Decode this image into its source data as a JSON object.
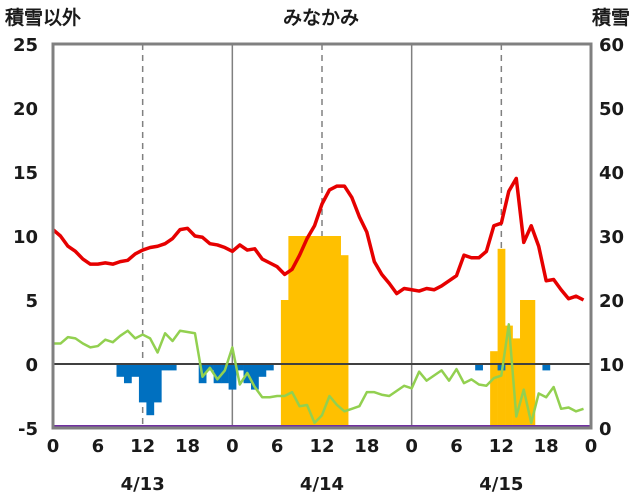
{
  "chart_data": {
    "type": "bar",
    "title": "みなかみ",
    "left_axis_label": "積雪以外",
    "right_axis_label": "積雪",
    "left_ylim": [
      -5,
      25
    ],
    "left_yticks": [
      "-5",
      "0",
      "5",
      "10",
      "15",
      "20",
      "25"
    ],
    "right_ylim": [
      0,
      60
    ],
    "right_yticks": [
      "0",
      "10",
      "20",
      "30",
      "40",
      "50",
      "60"
    ],
    "x_range_hours": [
      0,
      72
    ],
    "x_tick_labels": [
      "0",
      "6",
      "12",
      "18",
      "0",
      "6",
      "12",
      "18",
      "0",
      "6",
      "12",
      "18",
      "0"
    ],
    "dates": [
      "4/13",
      "4/14",
      "4/15"
    ],
    "grid": "vertical lines at day boundaries, dashed lines at noon",
    "colors": {
      "red_line": "#e60000",
      "green_line": "#92d050",
      "orange_bars": "#ffc000",
      "blue_bars": "#0070c0",
      "purple_line": "#7030a0",
      "frame": "#808080",
      "zero_line": "#404040"
    },
    "red_line_values": [
      10.5,
      10.0,
      9.2,
      8.8,
      8.2,
      7.8,
      7.8,
      7.9,
      7.8,
      8.0,
      8.1,
      8.6,
      8.9,
      9.1,
      9.2,
      9.4,
      9.8,
      10.5,
      10.6,
      10.0,
      9.9,
      9.4,
      9.3,
      9.1,
      8.8,
      9.3,
      8.9,
      9.0,
      8.2,
      7.9,
      7.6,
      7.0,
      7.4,
      8.5,
      9.8,
      10.8,
      12.5,
      13.6,
      13.9,
      13.9,
      13.0,
      11.5,
      10.3,
      8.0,
      7.0,
      6.3,
      5.5,
      5.9,
      5.8,
      5.7,
      5.9,
      5.8,
      6.1,
      6.5,
      6.9,
      8.5,
      8.3,
      8.3,
      8.8,
      10.8,
      11.0,
      13.5,
      14.5,
      9.5,
      10.8,
      9.2,
      6.5,
      6.6,
      5.8,
      5.1,
      5.3,
      5.0
    ],
    "green_line_values": [
      1.6,
      1.6,
      2.1,
      2.0,
      1.6,
      1.3,
      1.4,
      1.9,
      1.7,
      2.2,
      2.6,
      2.0,
      2.3,
      2.0,
      0.9,
      2.4,
      1.8,
      2.6,
      2.5,
      2.4,
      -1.0,
      -0.3,
      -1.2,
      -0.5,
      1.3,
      -1.6,
      -0.7,
      -1.8,
      -2.6,
      -2.6,
      -2.5,
      -2.5,
      -2.2,
      -3.3,
      -3.2,
      -4.6,
      -4.0,
      -2.5,
      -3.2,
      -3.7,
      -3.5,
      -3.3,
      -2.2,
      -2.2,
      -2.4,
      -2.5,
      -2.1,
      -1.7,
      -1.9,
      -0.6,
      -1.3,
      -0.9,
      -0.5,
      -1.3,
      -0.4,
      -1.5,
      -1.2,
      -1.6,
      -1.7,
      -1.1,
      -0.9,
      3.1,
      -4.1,
      -2.0,
      -4.6,
      -2.3,
      -2.6,
      -1.8,
      -3.5,
      -3.4,
      -3.7,
      -3.5
    ],
    "orange_bars_snow_depth": [
      {
        "hour": 31,
        "value": 20
      },
      {
        "hour": 32,
        "value": 30
      },
      {
        "hour": 33,
        "value": 30
      },
      {
        "hour": 34,
        "value": 30
      },
      {
        "hour": 35,
        "value": 30
      },
      {
        "hour": 36,
        "value": 30
      },
      {
        "hour": 37,
        "value": 30
      },
      {
        "hour": 38,
        "value": 30
      },
      {
        "hour": 39,
        "value": 27
      },
      {
        "hour": 59,
        "value": 12
      },
      {
        "hour": 60,
        "value": 28
      },
      {
        "hour": 61,
        "value": 16
      },
      {
        "hour": 62,
        "value": 14
      },
      {
        "hour": 63,
        "value": 20
      },
      {
        "hour": 64,
        "value": 20
      }
    ],
    "blue_bars": [
      {
        "hour": 9,
        "value": -1.0
      },
      {
        "hour": 10,
        "value": -1.5
      },
      {
        "hour": 11,
        "value": -1.0
      },
      {
        "hour": 12,
        "value": -3.0
      },
      {
        "hour": 13,
        "value": -4.0
      },
      {
        "hour": 14,
        "value": -3.0
      },
      {
        "hour": 15,
        "value": -0.5
      },
      {
        "hour": 16,
        "value": -0.5
      },
      {
        "hour": 20,
        "value": -1.5
      },
      {
        "hour": 21,
        "value": -0.5
      },
      {
        "hour": 22,
        "value": -1.5
      },
      {
        "hour": 23,
        "value": -1.5
      },
      {
        "hour": 24,
        "value": -2.0
      },
      {
        "hour": 25,
        "value": -0.5
      },
      {
        "hour": 26,
        "value": -1.5
      },
      {
        "hour": 27,
        "value": -2.0
      },
      {
        "hour": 28,
        "value": -1.0
      },
      {
        "hour": 29,
        "value": -0.5
      },
      {
        "hour": 57,
        "value": -0.5
      },
      {
        "hour": 60,
        "value": -0.5
      },
      {
        "hour": 66,
        "value": -0.5
      }
    ],
    "purple_line_value": -5
  }
}
